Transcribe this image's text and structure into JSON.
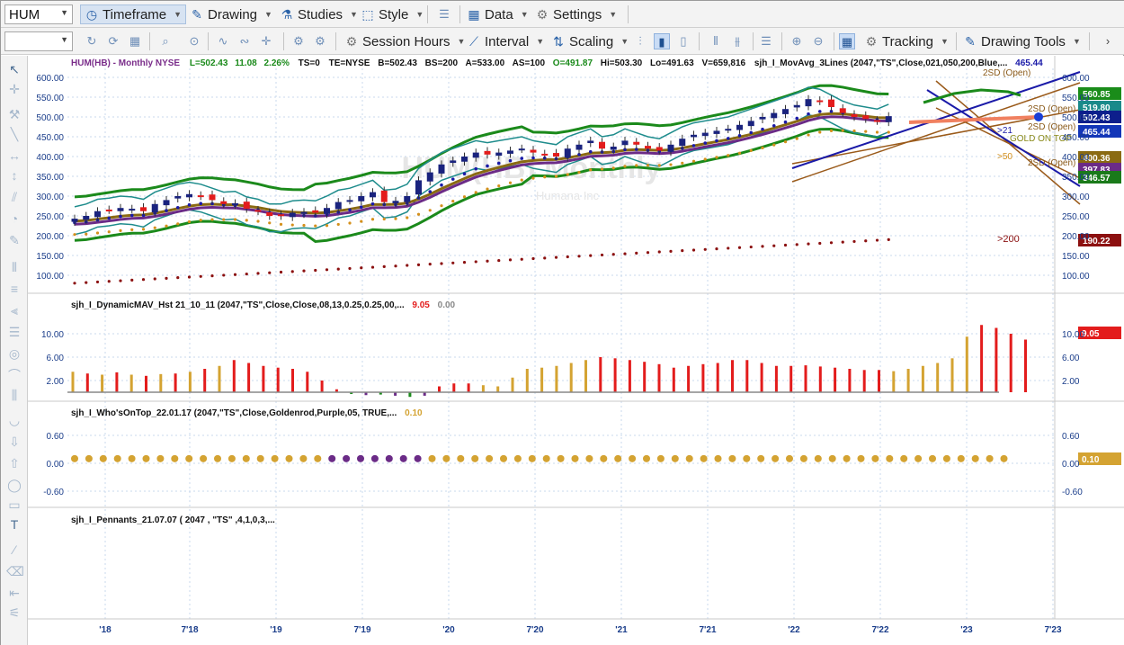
{
  "symbol": "HUM",
  "toolbar1": {
    "timeframe": "Timeframe",
    "drawing": "Drawing",
    "studies": "Studies",
    "style": "Style",
    "data": "Data",
    "settings": "Settings"
  },
  "toolbar2": {
    "session_hours": "Session Hours",
    "interval": "Interval",
    "scaling": "Scaling",
    "tracking": "Tracking",
    "drawing_tools": "Drawing Tools"
  },
  "header": {
    "name": "HUM(HB) - Monthly  NYSE",
    "last": "L=502.43",
    "chg": "11.08",
    "pct": "2.26%",
    "ts": "TS=0",
    "te": "TE=NYSE",
    "bid": "B=502.43",
    "bs": "BS=200",
    "ask": "A=533.00",
    "as": "AS=100",
    "open": "O=491.87",
    "hi": "Hi=503.30",
    "lo": "Lo=491.63",
    "vol": "V=659,816",
    "study": "sjh_I_MovAvg_3Lines (2047,\"TS\",Close,021,050,200,Blue,...",
    "study_val": "465.44"
  },
  "watermark": "HUM(HB) Monthly",
  "watermark_sub": "Humana Inc",
  "panes": {
    "p1_ticks": [
      "600.00",
      "550.00",
      "500.00",
      "450.00",
      "400.00",
      "350.00",
      "300.00",
      "250.00",
      "200.00",
      "150.00",
      "100.00"
    ],
    "p1_right_ticks": [
      "600.00",
      "550.00",
      "500.00",
      "450.00",
      "400.00",
      "350.00",
      "300.00",
      "250.00",
      "200.00",
      "150.00",
      "100.00"
    ],
    "price_tags": [
      {
        "text": "560.85",
        "bg": "#1a8c1a"
      },
      {
        "text": "519.80",
        "bg": "#1a8a8a"
      },
      {
        "text": "502.43",
        "bg": "#0d1f8c"
      },
      {
        "text": "465.44",
        "bg": "#1336b8"
      },
      {
        "text": "400.36",
        "bg": "#8a6a12"
      },
      {
        "text": "397.83",
        "bg": "#6b2b87"
      },
      {
        "text": "346.57",
        "bg": "#1a7a1a"
      },
      {
        "text": "190.22",
        "bg": "#8c1010"
      }
    ],
    "labels": {
      "sd_top": "2SD (Open)",
      "sd_mid1": "2SD (Open)",
      "sd_mid2": "2SD (Open)",
      "sd_low": "2SD (Open)",
      "gold": "GOLD ON TOP",
      "ma21": ">21",
      "ma50": ">50",
      "ma200": ">200"
    },
    "p2_title": "sjh_I_DynamicMAV_Hst 21_10_11 (2047,\"TS\",Close,Close,08,13,0.25,0.25,00,...",
    "p2_v1": "9.05",
    "p2_v2": "0.00",
    "p2_ticks": [
      "10.00",
      "6.00",
      "2.00"
    ],
    "p2_right_ticks": [
      "10.00",
      "6.00",
      "2.00"
    ],
    "p2_tag": "9.05",
    "p3_title": "sjh_I_Who'sOnTop_22.01.17 (2047,\"TS\",Close,Goldenrod,Purple,05, TRUE,...",
    "p3_v1": "0.10",
    "p3_ticks": [
      "0.60",
      "0.00",
      "-0.60"
    ],
    "p3_right_ticks": [
      "0.60",
      "0.00",
      "-0.60"
    ],
    "p3_tag": "0.10",
    "p4_title": "sjh_I_Pennants_21.07.07 ( 2047 , \"TS\" ,4,1,0,3,..."
  },
  "x_axis": [
    "'18",
    "7'18",
    "'19",
    "7'19",
    "'20",
    "7'20",
    "'21",
    "7'21",
    "'22",
    "7'22",
    "'23",
    "7'23"
  ],
  "colors": {
    "up_candle": "#1a237e",
    "down_candle": "#e31c1c",
    "bb_outer": "#1b8a1b",
    "bb_inner": "#1e8c8c",
    "ma21": "#1a1aa8",
    "ma50": "#d4901c",
    "ma200": "#8b1010",
    "gold": "#8a6a12",
    "purple": "#6b2b87",
    "hist_gold": "#d4a332",
    "hist_red": "#e31c1c"
  }
}
